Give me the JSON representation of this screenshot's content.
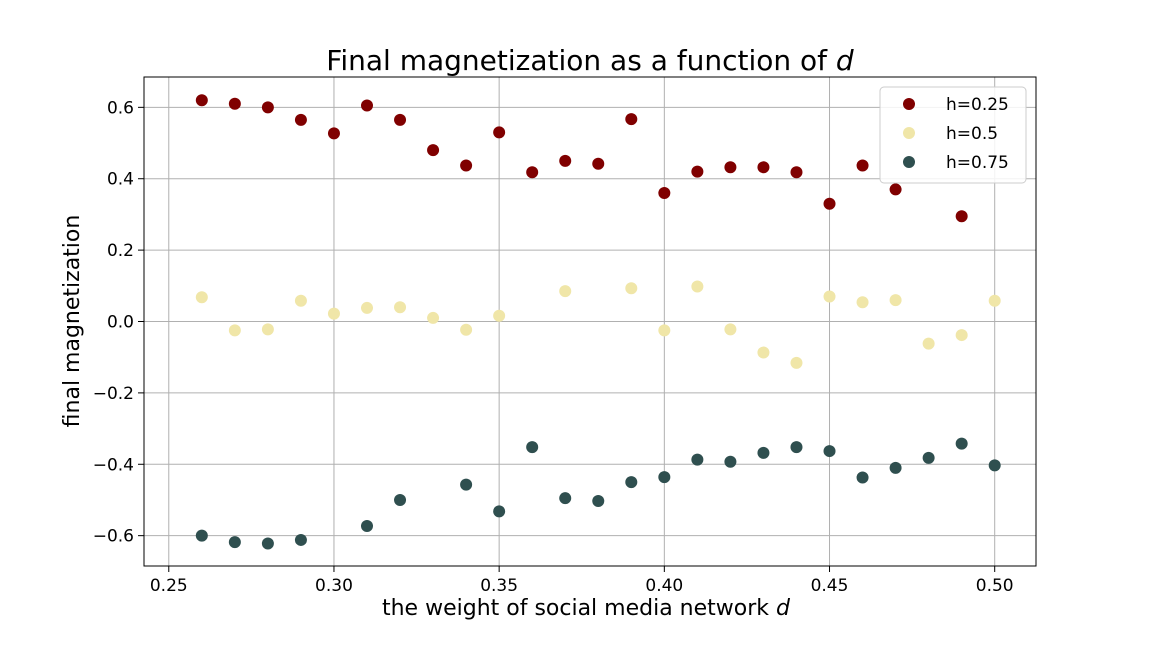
{
  "chart_data": {
    "type": "scatter",
    "title": "Final magnetization as a function of d",
    "title_text": "Final magnetization as a function of ",
    "title_var": "d",
    "xlabel": "the weight of social media network d",
    "xlabel_text": "the weight of social media network ",
    "xlabel_var": "d",
    "ylabel": "final magnetization",
    "xlim": [
      0.2425,
      0.5125
    ],
    "ylim": [
      -0.685,
      0.685
    ],
    "xticks": [
      0.25,
      0.3,
      0.35,
      0.4,
      0.45,
      0.5
    ],
    "xtick_labels": [
      "0.25",
      "0.30",
      "0.35",
      "0.40",
      "0.45",
      "0.50"
    ],
    "yticks": [
      -0.6,
      -0.4,
      -0.2,
      0.0,
      0.2,
      0.4,
      0.6
    ],
    "ytick_labels": [
      "−0.6",
      "−0.4",
      "−0.2",
      "0.0",
      "0.2",
      "0.4",
      "0.6"
    ],
    "grid": true,
    "legend_position": "top-right",
    "series": [
      {
        "name": "h=0.25",
        "color": "#800000",
        "x": [
          0.26,
          0.27,
          0.28,
          0.29,
          0.3,
          0.31,
          0.32,
          0.33,
          0.34,
          0.35,
          0.36,
          0.37,
          0.38,
          0.39,
          0.4,
          0.41,
          0.42,
          0.43,
          0.44,
          0.45,
          0.46,
          0.47,
          0.49
        ],
        "y": [
          0.62,
          0.61,
          0.6,
          0.565,
          0.527,
          0.605,
          0.565,
          0.48,
          0.437,
          0.53,
          0.418,
          0.45,
          0.442,
          0.567,
          0.36,
          0.42,
          0.432,
          0.432,
          0.418,
          0.33,
          0.437,
          0.37,
          0.295
        ]
      },
      {
        "name": "h=0.5",
        "color": "#f0e6a8",
        "x": [
          0.26,
          0.27,
          0.28,
          0.29,
          0.3,
          0.31,
          0.32,
          0.33,
          0.34,
          0.35,
          0.37,
          0.39,
          0.4,
          0.41,
          0.42,
          0.43,
          0.44,
          0.45,
          0.46,
          0.47,
          0.48,
          0.49,
          0.5
        ],
        "y": [
          0.068,
          -0.025,
          -0.022,
          0.058,
          0.022,
          0.038,
          0.04,
          0.01,
          -0.023,
          0.016,
          0.085,
          0.093,
          -0.025,
          0.098,
          -0.022,
          -0.087,
          -0.116,
          0.07,
          0.054,
          0.06,
          -0.062,
          -0.038,
          0.058
        ]
      },
      {
        "name": "h=0.75",
        "color": "#2f4f4f",
        "x": [
          0.26,
          0.27,
          0.28,
          0.29,
          0.31,
          0.32,
          0.34,
          0.35,
          0.36,
          0.37,
          0.38,
          0.39,
          0.4,
          0.41,
          0.42,
          0.43,
          0.44,
          0.45,
          0.46,
          0.47,
          0.48,
          0.49,
          0.5
        ],
        "y": [
          -0.6,
          -0.618,
          -0.622,
          -0.612,
          -0.573,
          -0.5,
          -0.457,
          -0.532,
          -0.352,
          -0.495,
          -0.503,
          -0.45,
          -0.436,
          -0.387,
          -0.393,
          -0.368,
          -0.352,
          -0.363,
          -0.437,
          -0.41,
          -0.382,
          -0.342,
          -0.403
        ]
      }
    ]
  }
}
